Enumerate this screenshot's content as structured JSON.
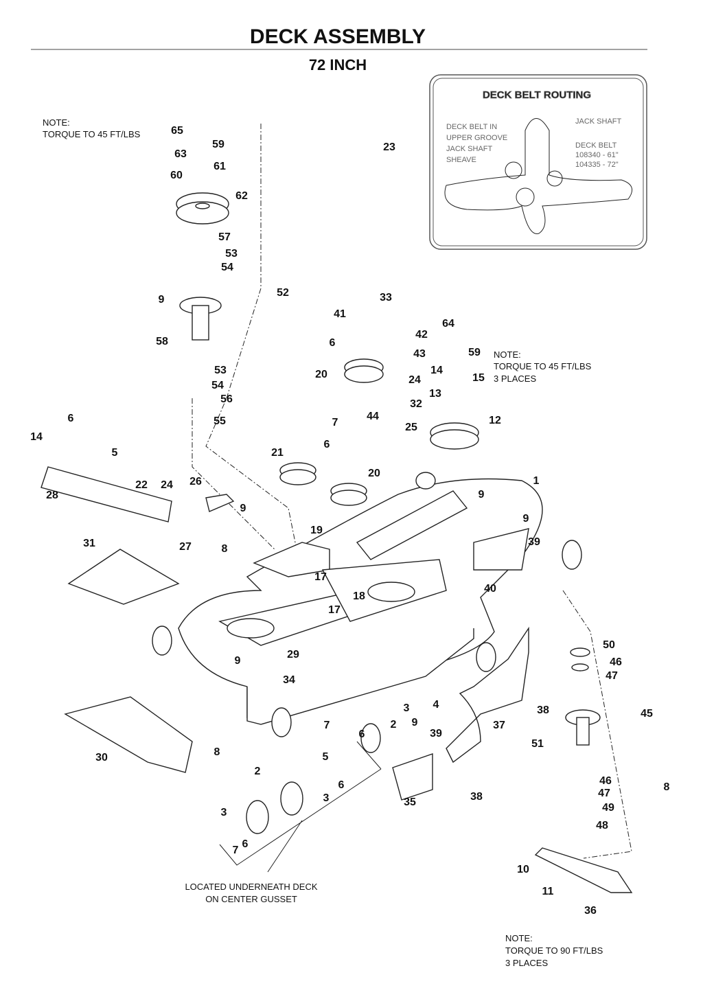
{
  "header": {
    "title": "DECK ASSEMBLY",
    "subtitle": "72 INCH"
  },
  "notes": [
    {
      "lines": [
        "NOTE:",
        "TORQUE TO 45 FT/LBS"
      ]
    },
    {
      "lines": [
        "NOTE:",
        "TORQUE TO 45 FT/LBS",
        "3 PLACES"
      ]
    },
    {
      "lines": [
        "NOTE:",
        "TORQUE TO 90 FT/LBS",
        "3 PLACES"
      ]
    },
    {
      "lines": [
        "LOCATED UNDERNEATH DECK",
        "ON CENTER GUSSET"
      ]
    }
  ],
  "inset": {
    "title": "DECK BELT ROUTING",
    "belt_note": [
      "DECK BELT IN",
      "UPPER GROOVE",
      "JACK SHAFT",
      "SHEAVE"
    ],
    "jack_shaft": "JACK SHAFT",
    "deck_belt": [
      "DECK BELT",
      "108340 - 61\"",
      "104335 - 72\""
    ]
  },
  "callouts": [
    "65",
    "59",
    "63",
    "61",
    "60",
    "62",
    "57",
    "53",
    "54",
    "52",
    "9",
    "58",
    "53",
    "54",
    "56",
    "55",
    "33",
    "41",
    "6",
    "42",
    "43",
    "20",
    "24",
    "64",
    "59",
    "14",
    "15",
    "13",
    "32",
    "44",
    "25",
    "12",
    "23",
    "6",
    "14",
    "5",
    "7",
    "6",
    "21",
    "20",
    "28",
    "22",
    "24",
    "26",
    "9",
    "19",
    "1",
    "9",
    "9",
    "39",
    "31",
    "27",
    "8",
    "17",
    "18",
    "17",
    "40",
    "29",
    "9",
    "34",
    "50",
    "46",
    "47",
    "4",
    "3",
    "38",
    "2",
    "45",
    "7",
    "6",
    "9",
    "39",
    "37",
    "51",
    "8",
    "30",
    "5",
    "2",
    "6",
    "3",
    "46",
    "47",
    "49",
    "8",
    "35",
    "38",
    "48",
    "3",
    "6",
    "7",
    "10",
    "11",
    "36"
  ]
}
